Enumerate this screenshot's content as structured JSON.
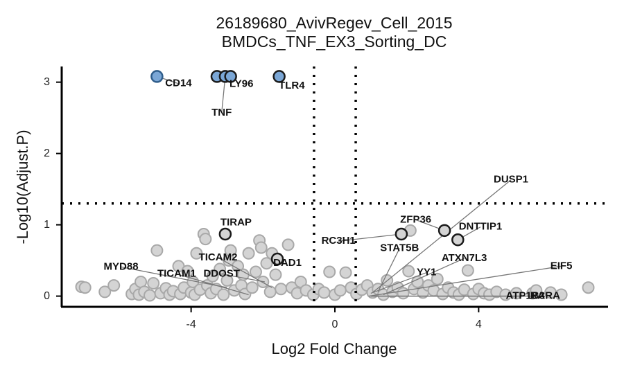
{
  "chart_data": {
    "type": "scatter",
    "title": "26189680_AvivRegev_Cell_2015",
    "subtitle": "BMDCs_TNF_EX3_Sorting_DC",
    "xlabel": "Log2 Fold Change",
    "ylabel": "-Log10(Adjust.P)",
    "xlim": [
      -7.6,
      7.6
    ],
    "ylim": [
      -0.15,
      3.22
    ],
    "x_ticks": [
      -4,
      0,
      4
    ],
    "x_tick_labels": [
      "-4",
      "0",
      "4"
    ],
    "y_ticks": [
      0,
      1,
      2,
      3
    ],
    "y_tick_labels": [
      "0",
      "1",
      "2",
      "3"
    ],
    "thresholds": {
      "vertical": [
        -0.58,
        0.58
      ],
      "horizontal": 1.3
    },
    "grid": false,
    "colors": {
      "significant_fill": "#7ba7d6",
      "significant_stroke": "#2f5d8a",
      "background_fill": "#d4d4d4",
      "background_stroke": "#a8a8a8",
      "highlight_stroke": "#1a1a1a",
      "threshold_line": "#000000"
    },
    "significant_points": [
      {
        "x": -4.95,
        "y": 3.08
      },
      {
        "x": -3.28,
        "y": 3.08
      },
      {
        "x": -3.05,
        "y": 3.08
      },
      {
        "x": -2.9,
        "y": 3.08
      },
      {
        "x": -1.55,
        "y": 3.08
      }
    ],
    "highlight_points": [
      {
        "x": -3.05,
        "y": 0.87
      },
      {
        "x": -1.6,
        "y": 0.52
      },
      {
        "x": 1.85,
        "y": 0.87
      },
      {
        "x": 3.05,
        "y": 0.92
      },
      {
        "x": 3.42,
        "y": 0.79
      }
    ],
    "background_points": [
      {
        "x": -7.05,
        "y": 0.13
      },
      {
        "x": -6.95,
        "y": 0.12
      },
      {
        "x": -6.4,
        "y": 0.06
      },
      {
        "x": -6.15,
        "y": 0.15
      },
      {
        "x": -5.65,
        "y": 0.03
      },
      {
        "x": -5.55,
        "y": 0.1
      },
      {
        "x": -5.45,
        "y": 0.02
      },
      {
        "x": -5.4,
        "y": 0.2
      },
      {
        "x": -5.3,
        "y": 0.06
      },
      {
        "x": -5.15,
        "y": 0.01
      },
      {
        "x": -5.05,
        "y": 0.18
      },
      {
        "x": -4.95,
        "y": 0.64
      },
      {
        "x": -4.85,
        "y": 0.04
      },
      {
        "x": -4.7,
        "y": 0.11
      },
      {
        "x": -4.6,
        "y": 0.02
      },
      {
        "x": -4.5,
        "y": 0.07
      },
      {
        "x": -4.35,
        "y": 0.42
      },
      {
        "x": -4.3,
        "y": 0.03
      },
      {
        "x": -4.2,
        "y": 0.12
      },
      {
        "x": -4.1,
        "y": 0.35
      },
      {
        "x": -4.0,
        "y": 0.05
      },
      {
        "x": -3.95,
        "y": 0.2
      },
      {
        "x": -3.9,
        "y": 0.02
      },
      {
        "x": -3.85,
        "y": 0.6
      },
      {
        "x": -3.75,
        "y": 0.09
      },
      {
        "x": -3.65,
        "y": 0.87
      },
      {
        "x": -3.6,
        "y": 0.8
      },
      {
        "x": -3.55,
        "y": 0.15
      },
      {
        "x": -3.45,
        "y": 0.04
      },
      {
        "x": -3.4,
        "y": 0.28
      },
      {
        "x": -3.3,
        "y": 0.1
      },
      {
        "x": -3.2,
        "y": 0.38
      },
      {
        "x": -3.1,
        "y": 0.02
      },
      {
        "x": -3.0,
        "y": 0.22
      },
      {
        "x": -2.95,
        "y": 0.5
      },
      {
        "x": -2.9,
        "y": 0.64
      },
      {
        "x": -2.8,
        "y": 0.08
      },
      {
        "x": -2.7,
        "y": 0.42
      },
      {
        "x": -2.6,
        "y": 0.15
      },
      {
        "x": -2.55,
        "y": 0.3
      },
      {
        "x": -2.5,
        "y": 0.03
      },
      {
        "x": -2.4,
        "y": 0.6
      },
      {
        "x": -2.3,
        "y": 0.12
      },
      {
        "x": -2.2,
        "y": 0.34
      },
      {
        "x": -2.1,
        "y": 0.78
      },
      {
        "x": -2.05,
        "y": 0.68
      },
      {
        "x": -2.0,
        "y": 0.2
      },
      {
        "x": -1.9,
        "y": 0.46
      },
      {
        "x": -1.8,
        "y": 0.06
      },
      {
        "x": -1.75,
        "y": 0.6
      },
      {
        "x": -1.65,
        "y": 0.3
      },
      {
        "x": -1.5,
        "y": 0.1
      },
      {
        "x": -1.3,
        "y": 0.72
      },
      {
        "x": -1.2,
        "y": 0.12
      },
      {
        "x": -1.05,
        "y": 0.04
      },
      {
        "x": -0.95,
        "y": 0.2
      },
      {
        "x": -0.8,
        "y": 0.08
      },
      {
        "x": -0.6,
        "y": 0.02
      },
      {
        "x": -0.45,
        "y": 0.1
      },
      {
        "x": -0.3,
        "y": 0.05
      },
      {
        "x": -0.15,
        "y": 0.34
      },
      {
        "x": 0.0,
        "y": 0.02
      },
      {
        "x": 0.15,
        "y": 0.08
      },
      {
        "x": 0.3,
        "y": 0.33
      },
      {
        "x": 0.45,
        "y": 0.12
      },
      {
        "x": 0.6,
        "y": 0.03
      },
      {
        "x": 0.75,
        "y": 0.09
      },
      {
        "x": 0.9,
        "y": 0.15
      },
      {
        "x": 1.05,
        "y": 0.05
      },
      {
        "x": 1.2,
        "y": 0.1
      },
      {
        "x": 1.35,
        "y": 0.02
      },
      {
        "x": 1.45,
        "y": 0.22
      },
      {
        "x": 1.6,
        "y": 0.06
      },
      {
        "x": 1.75,
        "y": 0.12
      },
      {
        "x": 1.9,
        "y": 0.04
      },
      {
        "x": 2.05,
        "y": 0.35
      },
      {
        "x": 2.1,
        "y": 0.92
      },
      {
        "x": 2.2,
        "y": 0.1
      },
      {
        "x": 2.3,
        "y": 0.2
      },
      {
        "x": 2.45,
        "y": 0.05
      },
      {
        "x": 2.6,
        "y": 0.15
      },
      {
        "x": 2.75,
        "y": 0.08
      },
      {
        "x": 2.85,
        "y": 0.24
      },
      {
        "x": 3.0,
        "y": 0.03
      },
      {
        "x": 3.15,
        "y": 0.12
      },
      {
        "x": 3.3,
        "y": 0.05
      },
      {
        "x": 3.45,
        "y": 0.02
      },
      {
        "x": 3.6,
        "y": 0.09
      },
      {
        "x": 3.7,
        "y": 0.36
      },
      {
        "x": 3.85,
        "y": 0.03
      },
      {
        "x": 4.0,
        "y": 0.1
      },
      {
        "x": 4.15,
        "y": 0.04
      },
      {
        "x": 4.3,
        "y": 0.02
      },
      {
        "x": 4.5,
        "y": 0.06
      },
      {
        "x": 4.75,
        "y": 0.02
      },
      {
        "x": 5.05,
        "y": 0.04
      },
      {
        "x": 5.5,
        "y": 0.04
      },
      {
        "x": 5.6,
        "y": 0.08
      },
      {
        "x": 6.0,
        "y": 0.05
      },
      {
        "x": 6.3,
        "y": 0.02
      },
      {
        "x": 7.05,
        "y": 0.12
      }
    ],
    "labels": [
      {
        "text": "CD14",
        "x": -4.95,
        "y": 3.08,
        "lx": -4.35,
        "ly": 2.98
      },
      {
        "text": "TNF",
        "x": -3.05,
        "y": 3.08,
        "lx": -3.15,
        "ly": 2.57
      },
      {
        "text": "LY96",
        "x": -2.9,
        "y": 3.08,
        "lx": -2.6,
        "ly": 2.97
      },
      {
        "text": "TLR4",
        "x": -1.55,
        "y": 3.08,
        "lx": -1.2,
        "ly": 2.95
      },
      {
        "text": "TIRAP",
        "x": -3.05,
        "y": 0.87,
        "lx": -2.75,
        "ly": 1.03
      },
      {
        "text": "DAD1",
        "x": -1.6,
        "y": 0.52,
        "lx": -1.32,
        "ly": 0.46
      },
      {
        "text": "MYD88",
        "x": -3.0,
        "y": 0.12,
        "lx": -5.95,
        "ly": 0.41
      },
      {
        "text": "TICAM2",
        "x": -1.75,
        "y": 0.12,
        "lx": -3.25,
        "ly": 0.54
      },
      {
        "text": "TICAM1",
        "x": -2.4,
        "y": 0.02,
        "lx": -4.4,
        "ly": 0.31
      },
      {
        "text": "DDOST",
        "x": -1.95,
        "y": 0.2,
        "lx": -3.15,
        "ly": 0.31
      },
      {
        "text": "RC3H1",
        "x": 1.85,
        "y": 0.87,
        "lx": 0.1,
        "ly": 0.77
      },
      {
        "text": "ZFP36",
        "x": 3.05,
        "y": 0.92,
        "lx": 2.25,
        "ly": 1.07
      },
      {
        "text": "STAT5B",
        "x": 1.2,
        "y": 0.06,
        "lx": 1.8,
        "ly": 0.67
      },
      {
        "text": "DNTTIP1",
        "x": 3.42,
        "y": 0.79,
        "lx": 4.05,
        "ly": 0.97
      },
      {
        "text": "DUSP1",
        "x": 1.05,
        "y": 0.05,
        "lx": 4.9,
        "ly": 1.63
      },
      {
        "text": "ATXN7L3",
        "x": 1.35,
        "y": 0.02,
        "lx": 3.6,
        "ly": 0.53
      },
      {
        "text": "YY1",
        "x": 1.0,
        "y": 0.04,
        "lx": 2.55,
        "ly": 0.33
      },
      {
        "text": "EIF5",
        "x": 0.95,
        "y": 0.0,
        "lx": 6.3,
        "ly": 0.42
      },
      {
        "text": "ATP1B3",
        "x": 1.0,
        "y": 0.0,
        "lx": 5.3,
        "ly": 0.0
      },
      {
        "text": "RARA",
        "x": 1.0,
        "y": 0.0,
        "lx": 5.85,
        "ly": 0.0
      }
    ]
  }
}
